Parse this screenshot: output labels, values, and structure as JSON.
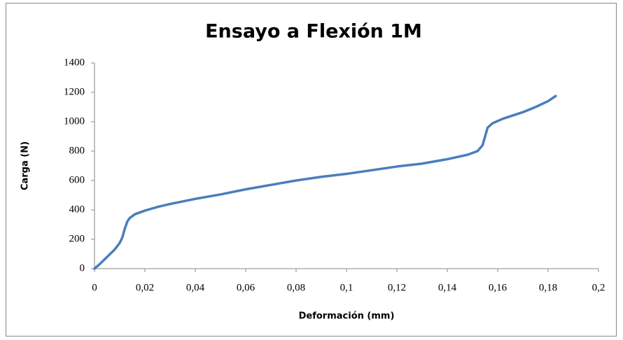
{
  "chart_data": {
    "type": "line",
    "title": "Ensayo a Flexión 1M",
    "x_label": "Deformación (mm)",
    "y_label": "Carga (N)",
    "x": [
      0,
      0.002,
      0.005,
      0.008,
      0.01,
      0.011,
      0.012,
      0.013,
      0.014,
      0.016,
      0.02,
      0.025,
      0.03,
      0.04,
      0.05,
      0.06,
      0.07,
      0.08,
      0.09,
      0.1,
      0.11,
      0.12,
      0.13,
      0.14,
      0.148,
      0.152,
      0.154,
      0.155,
      0.156,
      0.158,
      0.162,
      0.17,
      0.175,
      0.18,
      0.183
    ],
    "values": [
      0,
      30,
      80,
      130,
      175,
      210,
      270,
      320,
      345,
      370,
      395,
      420,
      440,
      475,
      505,
      540,
      570,
      600,
      625,
      645,
      670,
      695,
      715,
      745,
      775,
      800,
      840,
      900,
      960,
      990,
      1020,
      1065,
      1100,
      1140,
      1175
    ],
    "color": "#4a7ebb",
    "xlim": [
      0,
      0.2
    ],
    "xticks": [
      0,
      {
        "value": 0.02,
        "label": "0,02"
      },
      {
        "value": 0.04,
        "label": "0,04"
      },
      {
        "value": 0.06,
        "label": "0,06"
      },
      {
        "value": 0.08,
        "label": "0,08"
      },
      {
        "value": 0.1,
        "label": "0,1"
      },
      {
        "value": 0.12,
        "label": "0,12"
      },
      {
        "value": 0.14,
        "label": "0,14"
      },
      {
        "value": 0.16,
        "label": "0,16"
      },
      {
        "value": 0.18,
        "label": "0,18"
      },
      {
        "value": 0.2,
        "label": "0,2"
      }
    ],
    "ylim": [
      0,
      1400
    ],
    "yticks": [
      0,
      200,
      400,
      600,
      800,
      1000,
      1200,
      1400
    ],
    "grid": false
  }
}
